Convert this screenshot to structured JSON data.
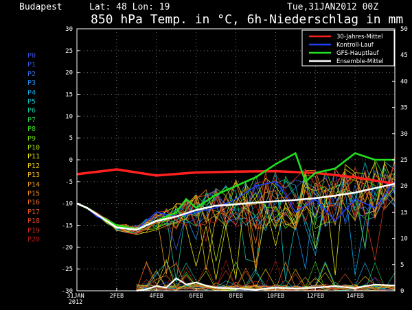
{
  "header": {
    "location": "Budapest",
    "coords": "Lat: 48 Lon: 19",
    "run": "Tue,31JAN2012 00Z",
    "title": "850 hPa Temp. in °C, 6h-Niederschlag in mm"
  },
  "members": [
    {
      "label": "P0",
      "color": "#3a4fd8"
    },
    {
      "label": "P1",
      "color": "#3a5ae0"
    },
    {
      "label": "P2",
      "color": "#2f6ee8"
    },
    {
      "label": "P3",
      "color": "#1f8ff0"
    },
    {
      "label": "P4",
      "color": "#12aae8"
    },
    {
      "label": "P5",
      "color": "#10c0c8"
    },
    {
      "label": "P6",
      "color": "#16c8a0"
    },
    {
      "label": "P7",
      "color": "#1ed050"
    },
    {
      "label": "P8",
      "color": "#3ad820"
    },
    {
      "label": "P9",
      "color": "#70d810"
    },
    {
      "label": "P10",
      "color": "#a8e010"
    },
    {
      "label": "P11",
      "color": "#e8e810"
    },
    {
      "label": "P12",
      "color": "#f0d010"
    },
    {
      "label": "P13",
      "color": "#f0b818"
    },
    {
      "label": "P14",
      "color": "#f0a020"
    },
    {
      "label": "P15",
      "color": "#f08a20"
    },
    {
      "label": "P16",
      "color": "#e87020"
    },
    {
      "label": "P17",
      "color": "#e05820"
    },
    {
      "label": "P18",
      "color": "#d84020"
    },
    {
      "label": "P19",
      "color": "#d02a20"
    },
    {
      "label": "P20",
      "color": "#b81818"
    }
  ],
  "chart_data": {
    "type": "line",
    "title": "850 hPa Temp. in °C, 6h-Niederschlag in mm",
    "x_labels": [
      "31JAN 2012",
      "2FEB",
      "4FEB",
      "6FEB",
      "8FEB",
      "10FEB",
      "12FEB",
      "14FEB"
    ],
    "xlim_days": [
      0,
      16
    ],
    "y_left": {
      "ylim": [
        -30,
        30
      ],
      "ticks": [
        30,
        25,
        20,
        15,
        10,
        5,
        0,
        -5,
        -10,
        -15,
        -20,
        -25,
        -30
      ]
    },
    "y_right": {
      "ylim": [
        0,
        50
      ],
      "ticks": [
        50,
        45,
        40,
        35,
        30,
        25,
        20,
        15,
        10,
        5,
        0
      ]
    },
    "grid": true,
    "legend": {
      "placement": "top-right",
      "entries": [
        {
          "label": "30-Jahres-Mittel",
          "color": "#ff2020"
        },
        {
          "label": "Kontroll-Lauf",
          "color": "#2040ff"
        },
        {
          "label": "GFS-Hauptlauf",
          "color": "#20e020"
        },
        {
          "label": "Ensemble-Mittel",
          "color": "#ffffff"
        }
      ]
    },
    "series_temp": [
      {
        "name": "30-Jahres-Mittel",
        "color": "#ff2020",
        "width": 3.5,
        "x": [
          0,
          2,
          4,
          6,
          8,
          10,
          12,
          14,
          16
        ],
        "y": [
          -3.3,
          -2.2,
          -3.6,
          -2.9,
          -2.7,
          -2.6,
          -3.0,
          -4.0,
          -5.5
        ]
      },
      {
        "name": "Kontroll-Lauf",
        "color": "#2040ff",
        "width": 1.6,
        "x": [
          0,
          0.5,
          1,
          2,
          3,
          3.5,
          4,
          5,
          6,
          7,
          8,
          9,
          10,
          10.5,
          11,
          12,
          13,
          14,
          15,
          16
        ],
        "y": [
          -10,
          -11,
          -13,
          -15,
          -16,
          -14,
          -12,
          -13,
          -12,
          -11,
          -9,
          -6,
          -5,
          -8,
          -12,
          -9,
          -14,
          -9,
          -11,
          -5
        ]
      },
      {
        "name": "GFS-Hauptlauf",
        "color": "#20e020",
        "width": 2.6,
        "x": [
          0,
          0.5,
          1,
          2,
          3,
          3.5,
          4,
          5,
          5.5,
          6,
          7,
          8,
          9,
          10,
          11,
          11.5,
          12,
          13,
          14,
          15,
          16
        ],
        "y": [
          -10,
          -11,
          -12.5,
          -15,
          -16,
          -15,
          -14,
          -12,
          -9,
          -11,
          -8,
          -6,
          -4,
          -1,
          1.5,
          -5,
          -3,
          -2,
          1.5,
          0,
          0
        ]
      },
      {
        "name": "Ensemble-Mittel",
        "color": "#ffffff",
        "width": 2.6,
        "x": [
          0,
          0.5,
          1,
          2,
          3,
          3.5,
          4,
          5,
          6,
          7,
          8,
          9,
          10,
          11,
          12,
          13,
          14,
          15,
          16
        ],
        "y": [
          -10,
          -11,
          -12.5,
          -15.5,
          -16,
          -15,
          -14,
          -13,
          -11.5,
          -10.5,
          -10.2,
          -9.8,
          -9.5,
          -9.2,
          -8.8,
          -8.2,
          -7.5,
          -6.5,
          -5.5
        ]
      }
    ],
    "series_precip_mean": {
      "name": "Ensemble-Mittel",
      "color": "#ffffff",
      "width": 2.2,
      "x": [
        3,
        3.5,
        4,
        4.5,
        5,
        5.5,
        6,
        6.5,
        7,
        8,
        9,
        10,
        11,
        12,
        13,
        14,
        15,
        16
      ],
      "y": [
        0,
        0.3,
        0.9,
        0.6,
        2.4,
        1.2,
        1.6,
        1.0,
        0.6,
        0.4,
        0.2,
        0.6,
        0.4,
        0.6,
        0.9,
        0.5,
        1.2,
        1.0
      ]
    }
  }
}
